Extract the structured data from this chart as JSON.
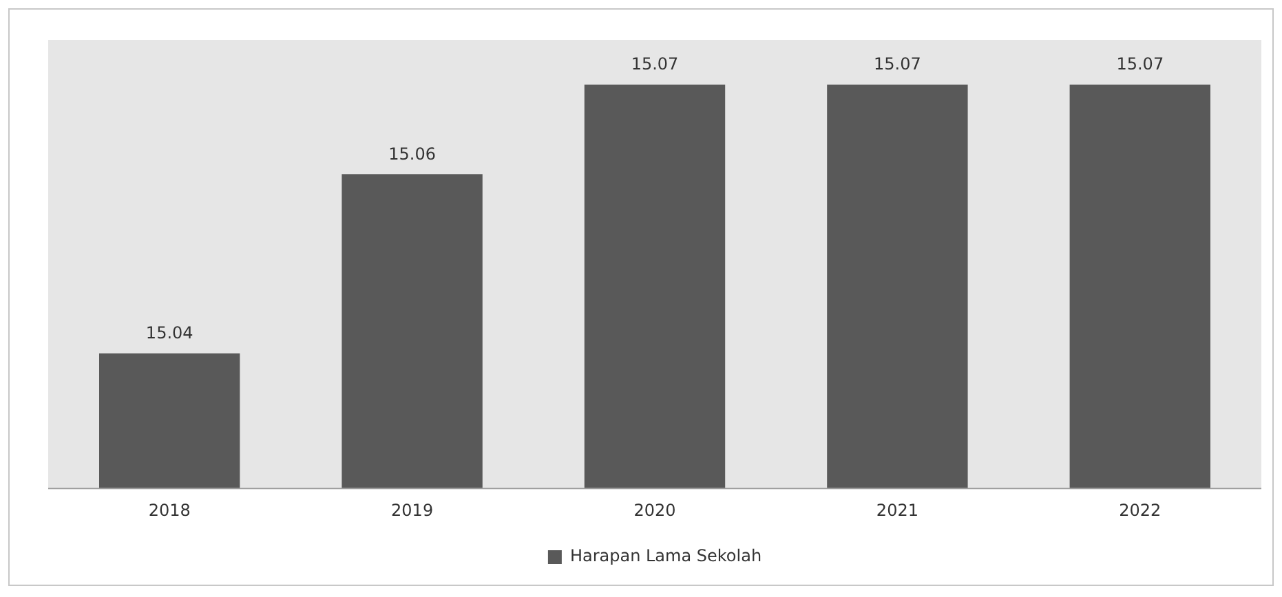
{
  "chart_data": {
    "type": "bar",
    "categories": [
      "2018",
      "2019",
      "2020",
      "2021",
      "2022"
    ],
    "series": [
      {
        "name": "Harapan Lama Sekolah",
        "color": "#595959",
        "values": [
          15.04,
          15.06,
          15.07,
          15.07,
          15.07
        ]
      }
    ],
    "ylim": [
      15.025,
      15.075
    ],
    "data_labels": true,
    "grid": false,
    "legend": "bottom",
    "tick_labels": "x"
  }
}
